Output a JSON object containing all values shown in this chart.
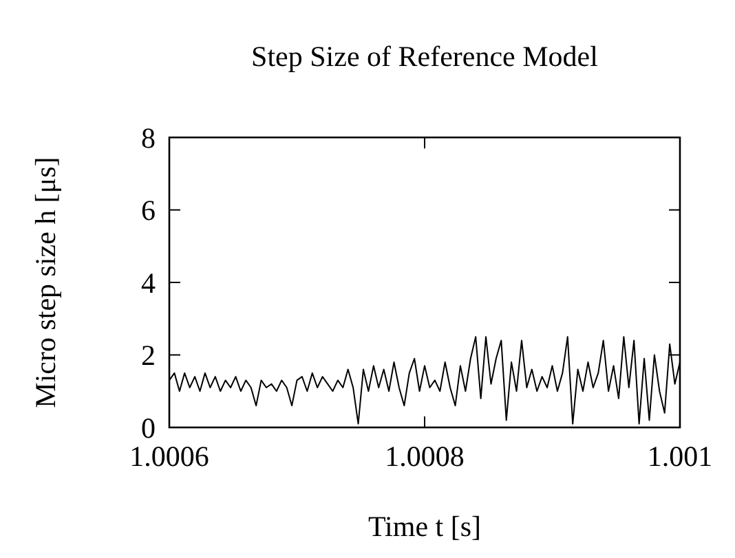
{
  "chart_data": {
    "type": "line",
    "title": "Step Size of Reference Model",
    "xlabel": "Time t [s]",
    "ylabel": "Micro step size h [μs]",
    "x": [
      1.0006,
      1.000604,
      1.000608,
      1.000612,
      1.000616,
      1.00062,
      1.000624,
      1.000628,
      1.000632,
      1.000636,
      1.00064,
      1.000644,
      1.000648,
      1.000652,
      1.000656,
      1.00066,
      1.000664,
      1.000668,
      1.000672,
      1.000676,
      1.00068,
      1.000684,
      1.000688,
      1.000692,
      1.000696,
      1.0007,
      1.000704,
      1.000708,
      1.000712,
      1.000716,
      1.00072,
      1.000724,
      1.000728,
      1.000732,
      1.000736,
      1.00074,
      1.000744,
      1.000748,
      1.000752,
      1.000756,
      1.00076,
      1.000764,
      1.000768,
      1.000772,
      1.000776,
      1.00078,
      1.000784,
      1.000788,
      1.000792,
      1.000796,
      1.0008,
      1.000804,
      1.000808,
      1.000812,
      1.000816,
      1.00082,
      1.000824,
      1.000828,
      1.000832,
      1.000836,
      1.00084,
      1.000844,
      1.000848,
      1.000852,
      1.000856,
      1.00086,
      1.000864,
      1.000868,
      1.000872,
      1.000876,
      1.00088,
      1.000884,
      1.000888,
      1.000892,
      1.000896,
      1.0009,
      1.000904,
      1.000908,
      1.000912,
      1.000916,
      1.00092,
      1.000924,
      1.000928,
      1.000932,
      1.000936,
      1.00094,
      1.000944,
      1.000948,
      1.000952,
      1.000956,
      1.00096,
      1.000964,
      1.000968,
      1.000972,
      1.000976,
      1.00098,
      1.000984,
      1.000988,
      1.000992,
      1.000996,
      1.001
    ],
    "series": [
      {
        "color": "#000000",
        "values": [
          1.3,
          1.5,
          1.0,
          1.5,
          1.1,
          1.4,
          1.0,
          1.5,
          1.1,
          1.4,
          1.0,
          1.3,
          1.1,
          1.4,
          1.0,
          1.3,
          1.1,
          0.6,
          1.3,
          1.1,
          1.2,
          1.0,
          1.3,
          1.1,
          0.6,
          1.3,
          1.4,
          1.0,
          1.5,
          1.1,
          1.4,
          1.2,
          1.0,
          1.3,
          1.1,
          1.6,
          1.1,
          0.1,
          1.6,
          1.0,
          1.7,
          1.1,
          1.6,
          1.0,
          1.8,
          1.1,
          0.6,
          1.5,
          1.9,
          1.0,
          1.7,
          1.1,
          1.3,
          1.0,
          1.8,
          1.1,
          0.6,
          1.7,
          1.0,
          1.9,
          2.5,
          0.8,
          2.5,
          1.2,
          1.9,
          2.4,
          0.2,
          1.8,
          1.0,
          2.4,
          1.1,
          1.6,
          1.0,
          1.4,
          1.1,
          1.7,
          1.0,
          1.5,
          2.5,
          0.1,
          1.6,
          1.0,
          1.8,
          1.1,
          1.5,
          2.4,
          1.0,
          1.7,
          0.8,
          2.5,
          1.1,
          2.4,
          0.1,
          1.9,
          0.2,
          2.0,
          1.0,
          0.4,
          2.3,
          1.2,
          1.8
        ]
      }
    ],
    "xlim": [
      1.0006,
      1.001
    ],
    "xticks": [
      {
        "value": 1.0006,
        "label": "1.0006"
      },
      {
        "value": 1.0008,
        "label": "1.0008"
      },
      {
        "value": 1.001,
        "label": "1.001"
      }
    ],
    "ylim": [
      0,
      8
    ],
    "yticks": [
      0,
      2,
      4,
      6,
      8
    ],
    "grid": false,
    "marker": "none",
    "line_style": "solid"
  }
}
